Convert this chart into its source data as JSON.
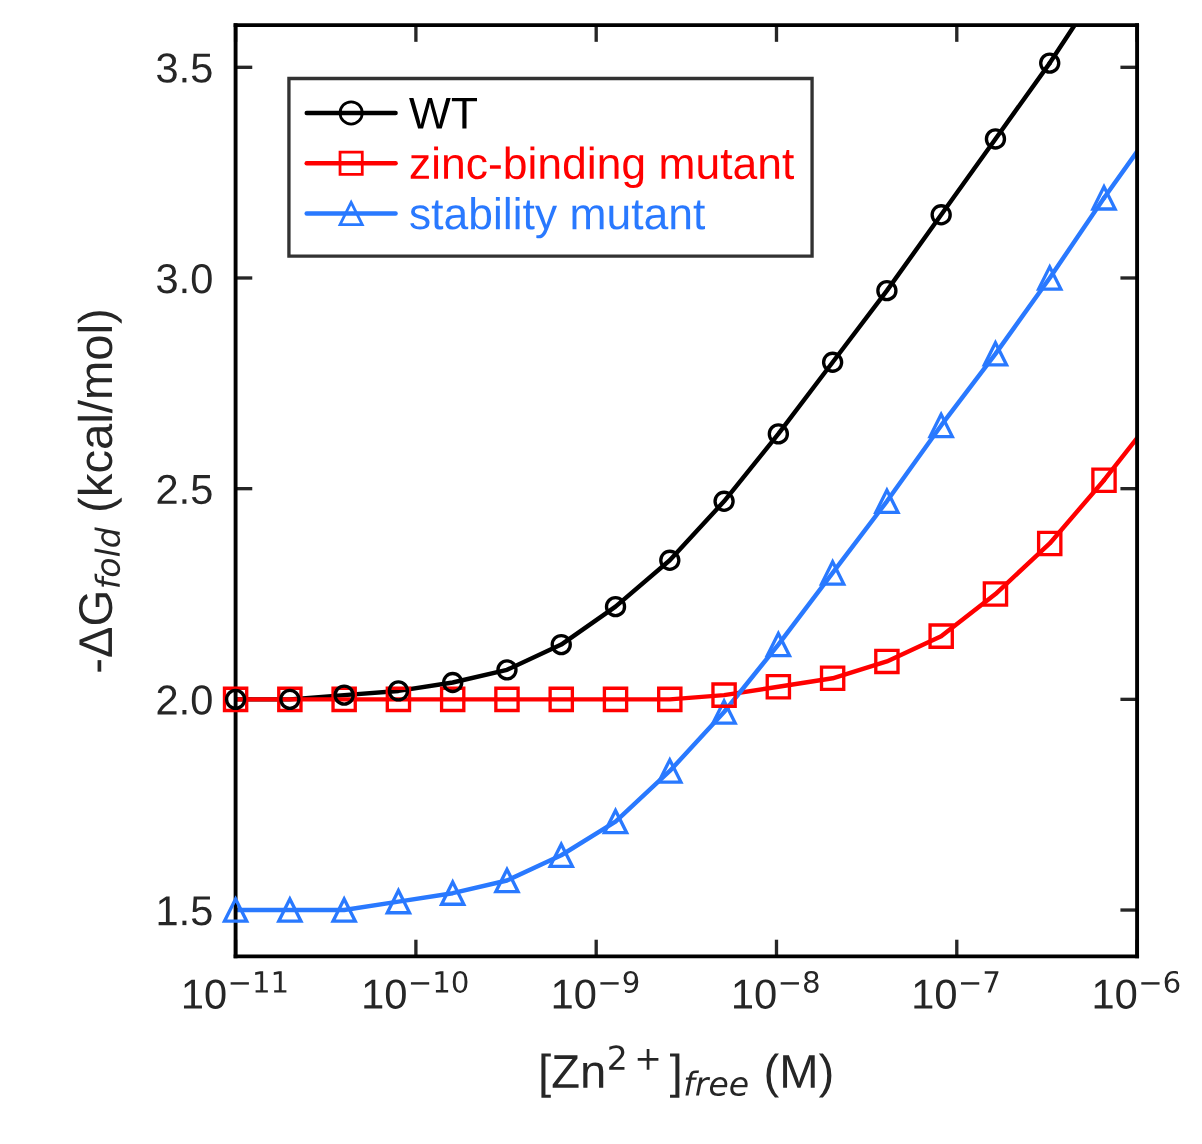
{
  "chart_data": {
    "type": "line",
    "xlabel": "[Zn$^{2+}$]$_{free}$ (M)",
    "ylabel": "-ΔG$_{fold}$ (kcal/mol)",
    "log": "x",
    "xlim": [
      1e-11,
      1e-06
    ],
    "ylim": [
      1.39,
      3.6
    ],
    "xticks": [
      {
        "value": 1e-11,
        "label": "10$^{−11}$"
      },
      {
        "value": 1e-10,
        "label": "10$^{−10}$"
      },
      {
        "value": 1e-09,
        "label": "10$^{−9}$"
      },
      {
        "value": 1e-08,
        "label": "10$^{−8}$"
      },
      {
        "value": 1e-07,
        "label": "10$^{−7}$"
      },
      {
        "value": 1e-06,
        "label": "10$^{−6}$"
      }
    ],
    "yticks": [
      {
        "value": 1.5,
        "label": "1.5"
      },
      {
        "value": 2.0,
        "label": "2.0"
      },
      {
        "value": 2.5,
        "label": "2.5"
      },
      {
        "value": 3.0,
        "label": "3.0"
      },
      {
        "value": 3.5,
        "label": "3.5"
      }
    ],
    "grid": false,
    "legend": "top left",
    "series": [
      {
        "name": "WT",
        "color": "#000000",
        "marker": "circle",
        "x": [
          1e-11,
          2e-11,
          4e-11,
          8e-11,
          1.6e-10,
          3.2e-10,
          6.4e-10,
          1.28e-09,
          2.56e-09,
          5.12e-09,
          1.024e-08,
          2.048e-08,
          4.096e-08,
          8.192e-08,
          1.6384e-07,
          3.2768e-07
        ],
        "values": [
          2.0,
          2.0,
          2.01,
          2.02,
          2.04,
          2.07,
          2.13,
          2.22,
          2.33,
          2.47,
          2.63,
          2.8,
          2.97,
          3.15,
          3.33,
          3.51
        ]
      },
      {
        "name": "zinc-binding mutant",
        "color": "#ff0000",
        "marker": "square",
        "x": [
          1e-11,
          2e-11,
          4e-11,
          8e-11,
          1.6e-10,
          3.2e-10,
          6.4e-10,
          1.28e-09,
          2.56e-09,
          5.12e-09,
          1.024e-08,
          2.048e-08,
          4.096e-08,
          8.192e-08,
          1.6384e-07,
          3.2768e-07,
          6.5536e-07
        ],
        "values": [
          2.0,
          2.0,
          2.0,
          2.0,
          2.0,
          2.0,
          2.0,
          2.0,
          2.0,
          2.01,
          2.03,
          2.05,
          2.09,
          2.15,
          2.25,
          2.37,
          2.52
        ]
      },
      {
        "name": "stability mutant",
        "color": "#2979ff",
        "marker": "triangle",
        "x": [
          1e-11,
          2e-11,
          4e-11,
          8e-11,
          1.6e-10,
          3.2e-10,
          6.4e-10,
          1.28e-09,
          2.56e-09,
          5.12e-09,
          1.024e-08,
          2.048e-08,
          4.096e-08,
          8.192e-08,
          1.6384e-07,
          3.2768e-07,
          6.5536e-07
        ],
        "values": [
          1.5,
          1.5,
          1.5,
          1.52,
          1.54,
          1.57,
          1.63,
          1.71,
          1.83,
          1.97,
          2.13,
          2.3,
          2.47,
          2.65,
          2.82,
          3.0,
          3.19
        ]
      },
      {
        "color": "#000000",
        "marker": "none",
        "x": [
          3.2768e-07,
          4.5e-07
        ],
        "values": [
          3.51,
          3.6
        ]
      },
      {
        "color": "#ff0000",
        "marker": "none",
        "x": [
          6.5536e-07,
          1e-06
        ],
        "values": [
          2.52,
          2.62
        ]
      },
      {
        "color": "#2979ff",
        "marker": "none",
        "x": [
          6.5536e-07,
          1e-06
        ],
        "values": [
          3.19,
          3.3
        ]
      }
    ]
  }
}
